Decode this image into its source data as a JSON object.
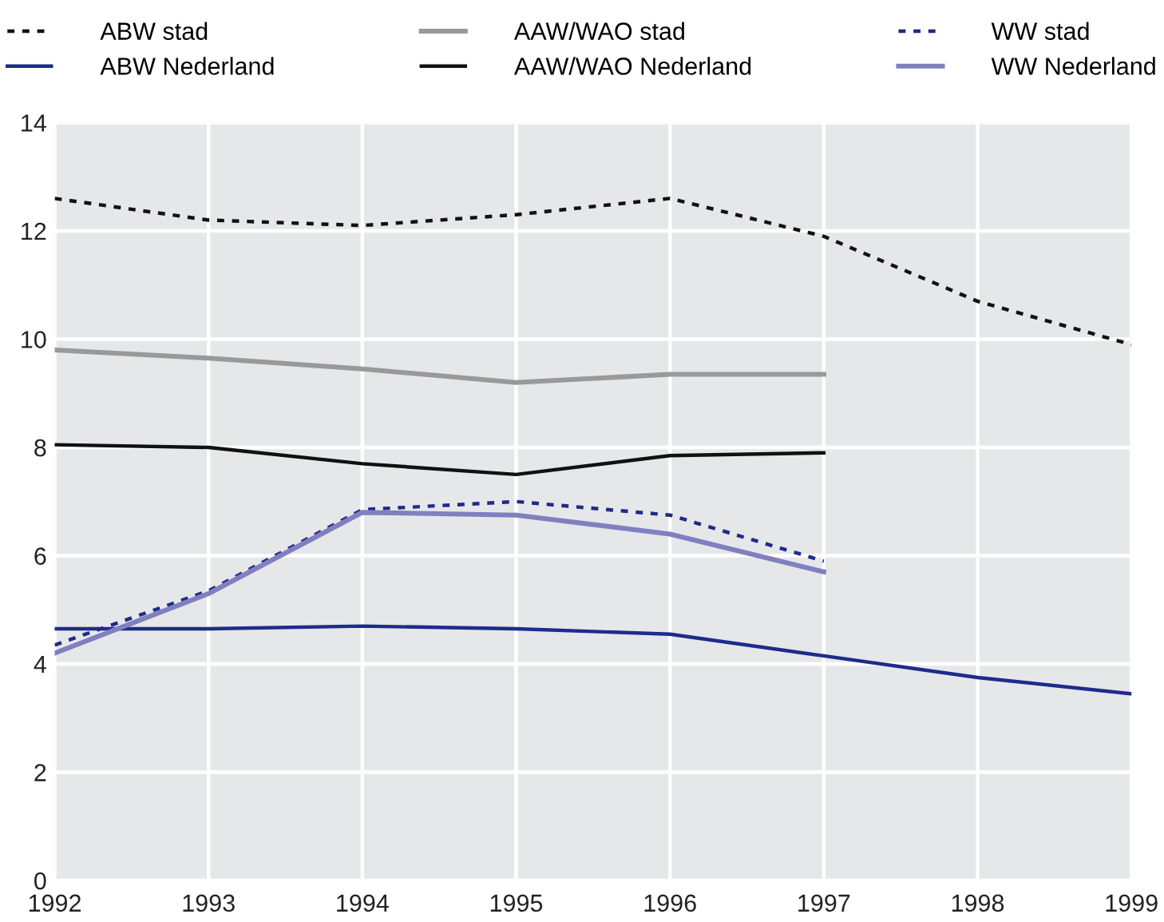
{
  "chart_data": {
    "type": "line",
    "x": [
      1992,
      1993,
      1994,
      1995,
      1996,
      1997,
      1998,
      1999
    ],
    "series": [
      {
        "name": "ABW stad",
        "color": "#111111",
        "line_style": "dotted",
        "values": [
          12.6,
          12.2,
          12.1,
          12.3,
          12.6,
          11.9,
          10.7,
          9.9
        ]
      },
      {
        "name": "ABW Nederland",
        "color": "#1f2a8c",
        "line_style": "solid",
        "values": [
          4.65,
          4.65,
          4.7,
          4.65,
          4.55,
          4.15,
          3.75,
          3.45
        ]
      },
      {
        "name": "AAW/WAO stad",
        "color": "#999999",
        "line_style": "solid",
        "values": [
          9.8,
          9.65,
          9.45,
          9.2,
          9.35,
          9.35,
          null,
          null
        ]
      },
      {
        "name": "AAW/WAO Nederland",
        "color": "#111111",
        "line_style": "solid",
        "values": [
          8.05,
          8.0,
          7.7,
          7.5,
          7.85,
          7.9,
          null,
          null
        ]
      },
      {
        "name": "WW stad",
        "color": "#1f2a8c",
        "line_style": "dotted",
        "values": [
          4.35,
          5.35,
          6.85,
          7.0,
          6.75,
          5.9,
          null,
          null
        ]
      },
      {
        "name": "WW Nederland",
        "color": "#8080c0",
        "line_style": "solid",
        "values": [
          4.2,
          5.3,
          6.8,
          6.75,
          6.4,
          5.7,
          null,
          null
        ]
      }
    ],
    "xlim": [
      1992,
      1999
    ],
    "xticks": [
      1992,
      1993,
      1994,
      1995,
      1996,
      1997,
      1998,
      1999
    ],
    "ylim": [
      0,
      14
    ],
    "yticks": [
      0,
      2,
      4,
      6,
      8,
      10,
      12,
      14
    ],
    "grid": true,
    "legend": "top",
    "marker": "none"
  }
}
